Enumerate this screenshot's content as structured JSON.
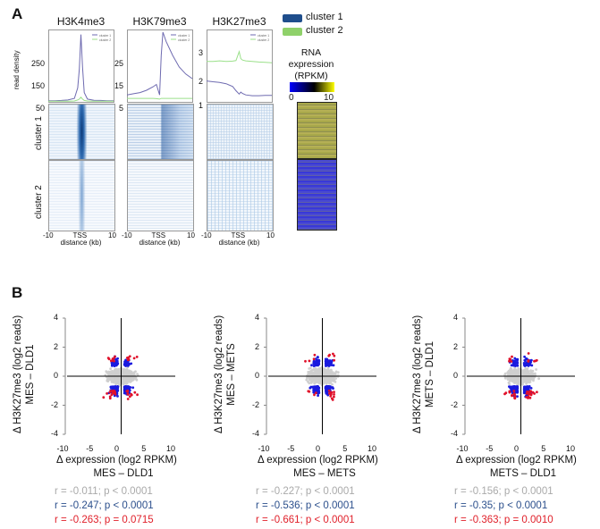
{
  "panel_a": {
    "label": "A",
    "titles": [
      "H3K4me3",
      "H3K79me3",
      "H3K27me3"
    ],
    "ylabel": "read density",
    "yticks": [
      [
        "250",
        "150",
        "50"
      ],
      [
        "25",
        "15",
        "5"
      ],
      [
        "3",
        "2",
        "1"
      ]
    ],
    "xtick_left": "-10",
    "xtick_mid": "TSS",
    "xtick_right": "10",
    "xlabel": "distance (kb)",
    "cluster_labels": [
      "cluster 1",
      "cluster 2"
    ],
    "legend": [
      {
        "label": "cluster 1",
        "color": "#1f4e8c"
      },
      {
        "label": "cluster 2",
        "color": "#8fd16a"
      }
    ],
    "mini_legend": [
      "cluster 1",
      "cluster 2"
    ],
    "rna_label": [
      "RNA",
      "expression",
      "(RPKM)"
    ],
    "colorbar_min": "0",
    "colorbar_max": "10"
  },
  "panel_b": {
    "label": "B"
  },
  "chart_data": [
    {
      "type": "line",
      "title": "H3K4me3",
      "ylabel": "read density",
      "xlabel": "distance (kb)",
      "x": [
        -10,
        -8,
        -6,
        -4,
        -2,
        -1,
        -0.5,
        0,
        0.5,
        1,
        2,
        4,
        6,
        8,
        10
      ],
      "ylim": [
        0,
        300
      ],
      "series": [
        {
          "name": "cluster 1",
          "values": [
            5,
            5,
            6,
            8,
            15,
            60,
            140,
            290,
            150,
            40,
            12,
            7,
            6,
            5,
            5
          ]
        },
        {
          "name": "cluster 2",
          "values": [
            3,
            3,
            3,
            3,
            4,
            8,
            12,
            20,
            12,
            6,
            4,
            3,
            3,
            3,
            3
          ]
        }
      ]
    },
    {
      "type": "line",
      "title": "H3K79me3",
      "xlabel": "distance (kb)",
      "x": [
        -10,
        -8,
        -6,
        -4,
        -2,
        -1,
        0,
        0.5,
        1,
        2,
        4,
        6,
        8,
        10
      ],
      "ylim": [
        0,
        30
      ],
      "series": [
        {
          "name": "cluster 1",
          "values": [
            3,
            3.5,
            4,
            5,
            6.5,
            7.5,
            3,
            20,
            30,
            26,
            20,
            15,
            12,
            10
          ]
        },
        {
          "name": "cluster 2",
          "values": [
            1.5,
            1.5,
            1.5,
            1.5,
            1.5,
            1.4,
            1.2,
            1.5,
            1.5,
            1.5,
            1.5,
            1.5,
            1.5,
            1.5
          ]
        }
      ]
    },
    {
      "type": "line",
      "title": "H3K27me3",
      "xlabel": "distance (kb)",
      "x": [
        -10,
        -8,
        -6,
        -4,
        -2,
        -1,
        0,
        0.5,
        1,
        2,
        4,
        6,
        8,
        10
      ],
      "ylim": [
        0.5,
        3
      ],
      "series": [
        {
          "name": "cluster 1",
          "values": [
            1.25,
            1.22,
            1.2,
            1.15,
            1.05,
            0.9,
            0.78,
            0.85,
            0.8,
            0.75,
            0.72,
            0.72,
            0.73,
            0.73
          ]
        },
        {
          "name": "cluster 2",
          "values": [
            1.95,
            1.95,
            1.97,
            1.95,
            1.96,
            1.98,
            2.3,
            2.05,
            2.0,
            1.97,
            1.95,
            1.93,
            1.92,
            1.9
          ]
        }
      ]
    },
    {
      "type": "scatter",
      "xlabel": "Δ expression (log2 RPKM)",
      "comparison": "MES – DLD1",
      "ylabel": "Δ H3K27me3 (log2 reads)",
      "xlim": [
        -10,
        10
      ],
      "ylim": [
        -4,
        4
      ],
      "xticks": [
        "-10",
        "-5",
        "0",
        "5",
        "10"
      ],
      "yticks": [
        "4",
        "2",
        "0",
        "-2",
        "-4"
      ],
      "stats": [
        {
          "text": "r = -0.011; p < 0.0001",
          "color": "#aaaaaa"
        },
        {
          "text": "r = -0.247; p < 0.0001",
          "color": "#2b4f8c"
        },
        {
          "text": "r = -0.263; p = 0.0715",
          "color": "#e0202a"
        }
      ]
    },
    {
      "type": "scatter",
      "xlabel": "Δ expression (log2 RPKM)",
      "comparison": "MES – METS",
      "ylabel": "Δ H3K27me3 (log2 reads)",
      "xlim": [
        -10,
        10
      ],
      "ylim": [
        -4,
        4
      ],
      "xticks": [
        "-10",
        "-5",
        "0",
        "5",
        "10"
      ],
      "yticks": [
        "4",
        "2",
        "0",
        "-2",
        "-4"
      ],
      "stats": [
        {
          "text": "r = -0.227; p < 0.0001",
          "color": "#aaaaaa"
        },
        {
          "text": "r = -0.536; p < 0.0001",
          "color": "#2b4f8c"
        },
        {
          "text": "r = -0.661; p < 0.0001",
          "color": "#e0202a"
        }
      ]
    },
    {
      "type": "scatter",
      "xlabel": "Δ expression (log2 RPKM)",
      "comparison": "METS – DLD1",
      "ylabel": "Δ H3K27me3 (log2 reads)",
      "xlim": [
        -10,
        10
      ],
      "ylim": [
        -4,
        4
      ],
      "xticks": [
        "-10",
        "-5",
        "0",
        "5",
        "10"
      ],
      "yticks": [
        "4",
        "2",
        "0",
        "-2",
        "-4"
      ],
      "stats": [
        {
          "text": "r = -0.156; p < 0.0001",
          "color": "#aaaaaa"
        },
        {
          "text": "r = -0.35; p < 0.0001",
          "color": "#2b4f8c"
        },
        {
          "text": "r = -0.363; p = 0.0010",
          "color": "#e0202a"
        }
      ]
    }
  ]
}
